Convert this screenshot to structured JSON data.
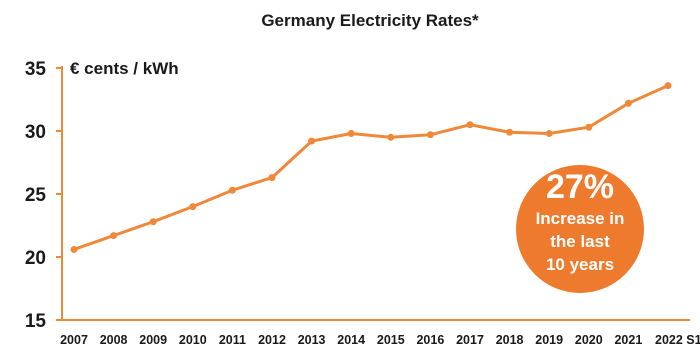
{
  "colors": {
    "line": "#f0883a",
    "axis": "#f0883a",
    "badge": "#ee7a2d",
    "text": "#1a1a1a"
  },
  "chart_data": {
    "type": "line",
    "title": "Germany Electricity Rates*",
    "unit_label": "€ cents / kWh",
    "xlabel": "",
    "ylabel": "",
    "ylim": [
      15,
      35
    ],
    "yticks": [
      15,
      20,
      25,
      30,
      35
    ],
    "grid": false,
    "categories": [
      "2007",
      "2008",
      "2009",
      "2010",
      "2011",
      "2012",
      "2013",
      "2014",
      "2015",
      "2016",
      "2017",
      "2018",
      "2019",
      "2020",
      "2021",
      "2022 S1"
    ],
    "series": [
      {
        "values": [
          20.6,
          21.7,
          22.8,
          24.0,
          25.3,
          26.3,
          29.2,
          29.8,
          29.5,
          29.7,
          30.5,
          29.9,
          29.8,
          30.3,
          32.2,
          33.6
        ]
      }
    ],
    "annotation": {
      "headline": "27%",
      "lines": [
        "Increase in",
        "the last",
        "10 years"
      ]
    }
  }
}
